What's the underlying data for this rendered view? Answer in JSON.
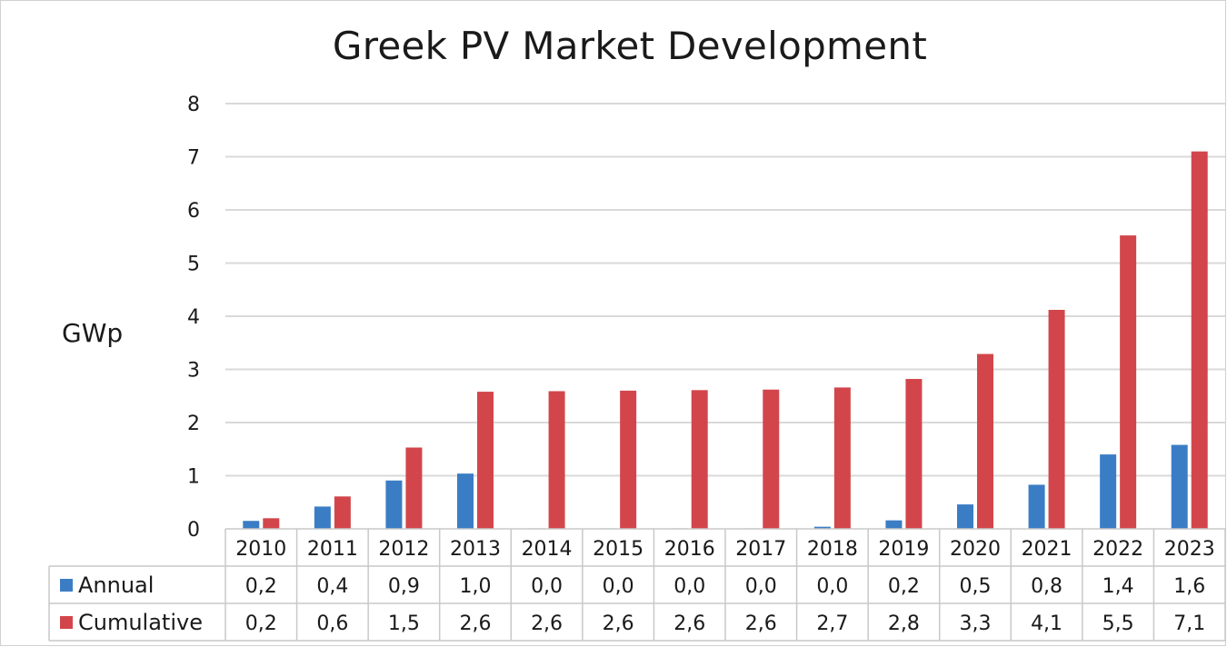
{
  "chart_data": {
    "type": "bar",
    "title": "Greek PV Market Development",
    "ylabel": "GWp",
    "xlabel": "",
    "ylim": [
      0,
      8
    ],
    "yticks": [
      "0",
      "1",
      "2",
      "3",
      "4",
      "5",
      "6",
      "7",
      "8"
    ],
    "grid": true,
    "categories": [
      "2010",
      "2011",
      "2012",
      "2013",
      "2014",
      "2015",
      "2016",
      "2017",
      "2018",
      "2019",
      "2020",
      "2021",
      "2022",
      "2023"
    ],
    "series": [
      {
        "name": "Annual",
        "color": "#3b7dc4",
        "values": [
          0.15,
          0.42,
          0.91,
          1.04,
          0.01,
          0.01,
          0.01,
          0.01,
          0.04,
          0.16,
          0.46,
          0.83,
          1.4,
          1.58
        ],
        "labels": [
          "0,2",
          "0,4",
          "0,9",
          "1,0",
          "0,0",
          "0,0",
          "0,0",
          "0,0",
          "0,0",
          "0,2",
          "0,5",
          "0,8",
          "1,4",
          "1,6"
        ]
      },
      {
        "name": "Cumulative",
        "color": "#d2464b",
        "values": [
          0.2,
          0.61,
          1.53,
          2.58,
          2.59,
          2.6,
          2.61,
          2.62,
          2.66,
          2.82,
          3.29,
          4.12,
          5.52,
          7.1
        ],
        "labels": [
          "0,2",
          "0,6",
          "1,5",
          "2,6",
          "2,6",
          "2,6",
          "2,6",
          "2,6",
          "2,7",
          "2,8",
          "3,3",
          "4,1",
          "5,5",
          "7,1"
        ]
      }
    ]
  }
}
